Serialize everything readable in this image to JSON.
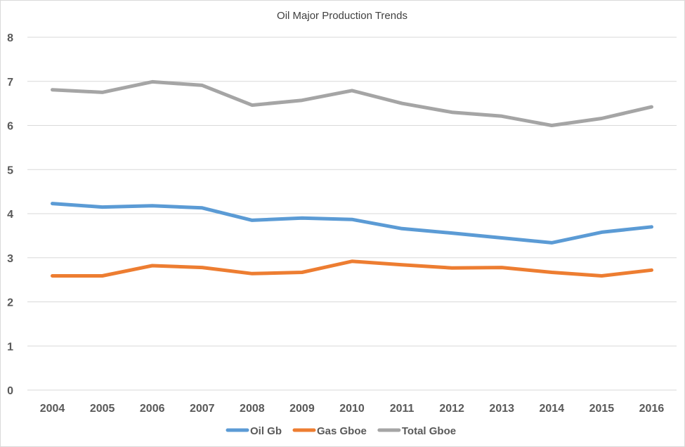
{
  "chart_data": {
    "type": "line",
    "title": "Oil Major Production Trends",
    "xlabel": "",
    "ylabel": "",
    "categories": [
      "2004",
      "2005",
      "2006",
      "2007",
      "2008",
      "2009",
      "2010",
      "2011",
      "2012",
      "2013",
      "2014",
      "2015",
      "2016"
    ],
    "ylim": [
      0,
      8
    ],
    "yticks": [
      "0",
      "1",
      "2",
      "3",
      "4",
      "5",
      "6",
      "7",
      "8"
    ],
    "grid": true,
    "legend_position": "bottom",
    "series": [
      {
        "name": "Oil Gb",
        "color": "#5b9bd5",
        "values": [
          4.23,
          4.15,
          4.18,
          4.13,
          3.85,
          3.9,
          3.87,
          3.66,
          3.56,
          3.45,
          3.34,
          3.58,
          3.7
        ]
      },
      {
        "name": "Gas Gboe",
        "color": "#ed7d31",
        "values": [
          2.59,
          2.59,
          2.82,
          2.78,
          2.64,
          2.67,
          2.92,
          2.84,
          2.77,
          2.78,
          2.67,
          2.59,
          2.72
        ]
      },
      {
        "name": "Total Gboe",
        "color": "#a5a5a5",
        "values": [
          6.81,
          6.75,
          6.99,
          6.91,
          6.46,
          6.57,
          6.79,
          6.5,
          6.3,
          6.21,
          6.0,
          6.16,
          6.42
        ]
      }
    ]
  }
}
